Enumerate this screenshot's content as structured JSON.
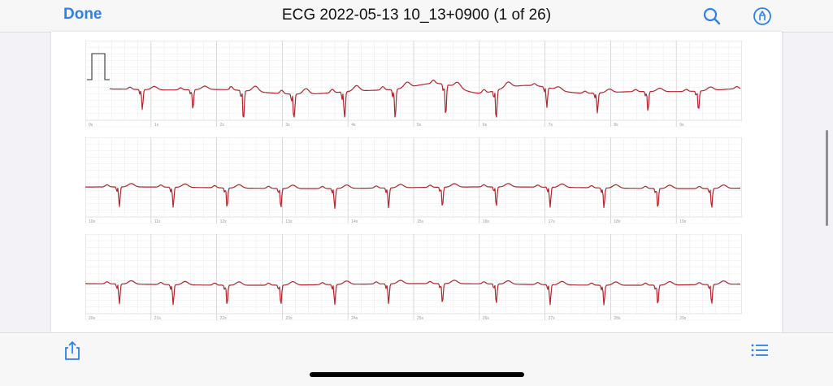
{
  "toolbar": {
    "done_label": "Done",
    "title": "ECG 2022-05-13 10_13+0900 (1 of 26)",
    "search_icon": "search-icon",
    "markup_icon": "markup-pen-icon"
  },
  "bottom_toolbar": {
    "share_icon": "share-icon",
    "outline_icon": "list-icon"
  },
  "colors": {
    "accent": "#2f80ed",
    "trace": "#b3242b",
    "grid_minor": "#e8e8e8",
    "grid_major": "#cfcfcf"
  },
  "strips": [
    {
      "tick_labels": [
        "0s",
        "1s",
        "2s",
        "3s",
        "4s",
        "5s",
        "6s",
        "7s",
        "8s",
        "9s"
      ]
    },
    {
      "tick_labels": [
        "10s",
        "11s",
        "12s",
        "13s",
        "14s",
        "15s",
        "16s",
        "17s",
        "18s",
        "19s"
      ]
    },
    {
      "tick_labels": [
        "20s",
        "21s",
        "22s",
        "23s",
        "24s",
        "25s",
        "26s",
        "27s",
        "28s",
        "29s"
      ]
    }
  ]
}
